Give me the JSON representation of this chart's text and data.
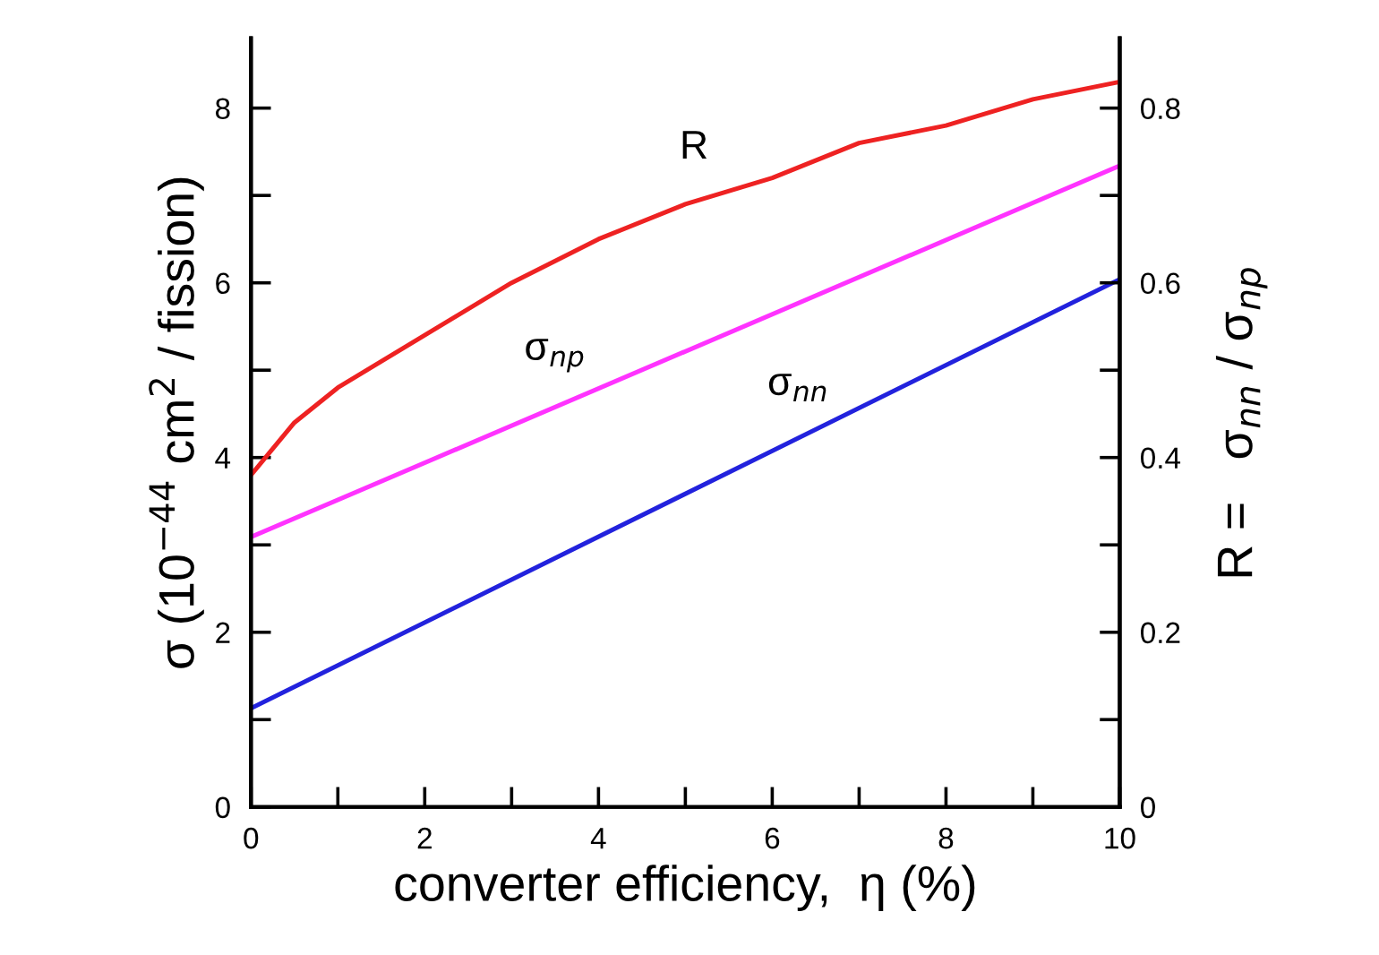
{
  "chart_data": {
    "type": "line",
    "xlabel": "converter efficiency,  η (%)",
    "ylabel": "σ (10$^{−44}$ cm$^{2}$ / fission)",
    "y2label": "R =   σ$_{nn}$ / σ$_{np}$",
    "xlim": [
      0,
      10
    ],
    "xticks": [
      0,
      {
        "value": 1,
        "label": null
      },
      2,
      {
        "value": 3,
        "label": null
      },
      4,
      {
        "value": 5,
        "label": null
      },
      6,
      {
        "value": 7,
        "label": null
      },
      8,
      {
        "value": 9,
        "label": null
      },
      10
    ],
    "ylim": [
      0,
      8.8
    ],
    "yticks": [
      0,
      {
        "value": 1,
        "label": null
      },
      2,
      {
        "value": 3,
        "label": null
      },
      4,
      {
        "value": 5,
        "label": null
      },
      6,
      {
        "value": 7,
        "label": null
      },
      8
    ],
    "y2lim": [
      0,
      0.88
    ],
    "y2ticks": [
      0,
      {
        "value": 0.1,
        "label": null
      },
      0.2,
      {
        "value": 0.3,
        "label": null
      },
      0.4,
      {
        "value": 0.5,
        "label": null
      },
      0.6,
      {
        "value": 0.7,
        "label": null
      },
      0.8
    ],
    "grid": false,
    "legend": false,
    "marker": "none",
    "line_style": "solid",
    "series": [
      {
        "name": "σ$_{nn}$",
        "color": "#2222dd",
        "x": [
          0,
          10
        ],
        "values": [
          1.13,
          6.04
        ]
      },
      {
        "name": "σ$_{np}$",
        "color": "#ff33ff",
        "x": [
          0,
          10
        ],
        "values": [
          3.09,
          7.34
        ]
      },
      {
        "name": "R",
        "color": "#ee2222",
        "axis": "y2",
        "x": [
          0,
          0.5,
          1,
          2,
          3,
          4,
          5,
          6,
          7,
          8,
          9,
          10
        ],
        "values": [
          0.38,
          0.44,
          0.48,
          0.54,
          0.6,
          0.65,
          0.69,
          0.72,
          0.76,
          0.78,
          0.81,
          0.83
        ]
      }
    ]
  }
}
